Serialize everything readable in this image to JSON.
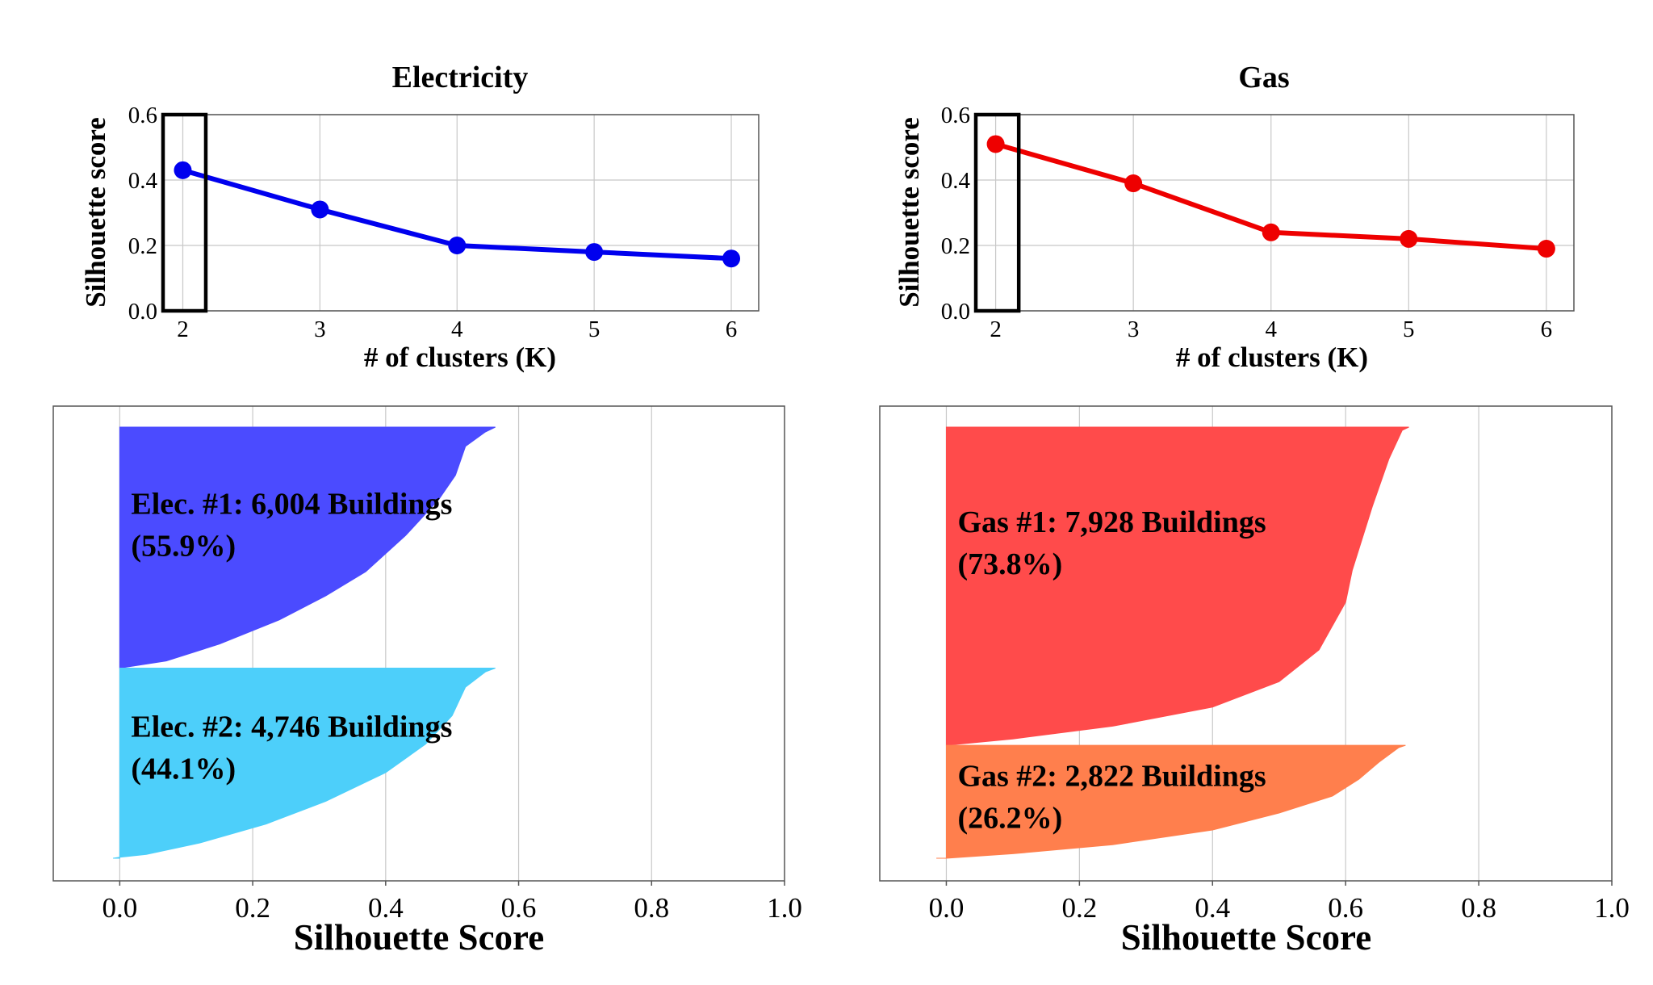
{
  "chart_data": [
    {
      "id": "elec-k",
      "type": "line",
      "title": "Electricity",
      "xlabel": "# of clusters (K)",
      "ylabel": "Silhouette score",
      "x": [
        2,
        3,
        4,
        5,
        6
      ],
      "series": [
        {
          "name": "Electricity",
          "values": [
            0.43,
            0.31,
            0.2,
            0.18,
            0.16
          ],
          "color": "#0000ee"
        }
      ],
      "xticks": [
        "2",
        "3",
        "4",
        "5",
        "6"
      ],
      "yticks": [
        "0.0",
        "0.2",
        "0.4",
        "0.6"
      ],
      "xlim": [
        1.85,
        6.2
      ],
      "ylim": [
        0,
        0.6
      ],
      "grid": true,
      "highlight_k": 2
    },
    {
      "id": "gas-k",
      "type": "line",
      "title": "Gas",
      "xlabel": "# of clusters (K)",
      "ylabel": "Silhouette score",
      "x": [
        2,
        3,
        4,
        5,
        6
      ],
      "series": [
        {
          "name": "Gas",
          "values": [
            0.51,
            0.39,
            0.24,
            0.22,
            0.19
          ],
          "color": "#ee0000"
        }
      ],
      "xticks": [
        "2",
        "3",
        "4",
        "5",
        "6"
      ],
      "yticks": [
        "0.0",
        "0.2",
        "0.4",
        "0.6"
      ],
      "xlim": [
        1.85,
        6.2
      ],
      "ylim": [
        0,
        0.6
      ],
      "grid": true,
      "highlight_k": 2
    },
    {
      "id": "elec-sil",
      "type": "area",
      "xlabel": "Silhouette Score",
      "xticks": [
        "0.0",
        "0.2",
        "0.4",
        "0.6",
        "0.8",
        "1.0"
      ],
      "xlim": [
        -0.1,
        1.0
      ],
      "grid": true,
      "clusters": [
        {
          "name": "Elec. #1",
          "label": "Elec. #1: 6,004 Buildings",
          "pct": "(55.9%)",
          "count": 6004,
          "share": 55.9,
          "color": "#4b4bff",
          "profile": [
            [
              0,
              0.565
            ],
            [
              0.02,
              0.55
            ],
            [
              0.08,
              0.52
            ],
            [
              0.2,
              0.505
            ],
            [
              0.3,
              0.48
            ],
            [
              0.45,
              0.43
            ],
            [
              0.6,
              0.37
            ],
            [
              0.7,
              0.31
            ],
            [
              0.8,
              0.24
            ],
            [
              0.9,
              0.15
            ],
            [
              0.97,
              0.07
            ],
            [
              1,
              0.0
            ]
          ]
        },
        {
          "name": "Elec. #2",
          "label": "Elec. #2: 4,746 Buildings",
          "pct": "(44.1%)",
          "count": 4746,
          "share": 44.1,
          "color": "#4dcffa",
          "profile": [
            [
              0,
              0.565
            ],
            [
              0.02,
              0.55
            ],
            [
              0.1,
              0.52
            ],
            [
              0.25,
              0.5
            ],
            [
              0.4,
              0.46
            ],
            [
              0.55,
              0.4
            ],
            [
              0.7,
              0.31
            ],
            [
              0.82,
              0.22
            ],
            [
              0.92,
              0.12
            ],
            [
              0.98,
              0.04
            ],
            [
              0.995,
              0.0
            ],
            [
              1,
              -0.01
            ]
          ]
        }
      ]
    },
    {
      "id": "gas-sil",
      "type": "area",
      "xlabel": "Silhouette Score",
      "xticks": [
        "0.0",
        "0.2",
        "0.4",
        "0.6",
        "0.8",
        "1.0"
      ],
      "xlim": [
        -0.1,
        1.0
      ],
      "grid": true,
      "clusters": [
        {
          "name": "Gas #1",
          "label": "Gas #1: 7,928 Buildings",
          "pct": "(73.8%)",
          "count": 7928,
          "share": 73.8,
          "color": "#ff4b4b",
          "profile": [
            [
              0,
              0.695
            ],
            [
              0.01,
              0.685
            ],
            [
              0.1,
              0.665
            ],
            [
              0.25,
              0.64
            ],
            [
              0.45,
              0.61
            ],
            [
              0.55,
              0.6
            ],
            [
              0.7,
              0.56
            ],
            [
              0.8,
              0.5
            ],
            [
              0.88,
              0.4
            ],
            [
              0.94,
              0.25
            ],
            [
              0.98,
              0.1
            ],
            [
              1,
              0.0
            ]
          ]
        },
        {
          "name": "Gas #2",
          "label": "Gas #2: 2,822 Buildings",
          "pct": "(26.2%)",
          "count": 2822,
          "share": 26.2,
          "color": "#ff7f4d",
          "profile": [
            [
              0,
              0.69
            ],
            [
              0.02,
              0.68
            ],
            [
              0.15,
              0.65
            ],
            [
              0.3,
              0.62
            ],
            [
              0.45,
              0.58
            ],
            [
              0.6,
              0.5
            ],
            [
              0.75,
              0.4
            ],
            [
              0.88,
              0.25
            ],
            [
              0.96,
              0.1
            ],
            [
              1,
              0.0
            ],
            [
              1,
              -0.015
            ]
          ]
        }
      ]
    }
  ]
}
